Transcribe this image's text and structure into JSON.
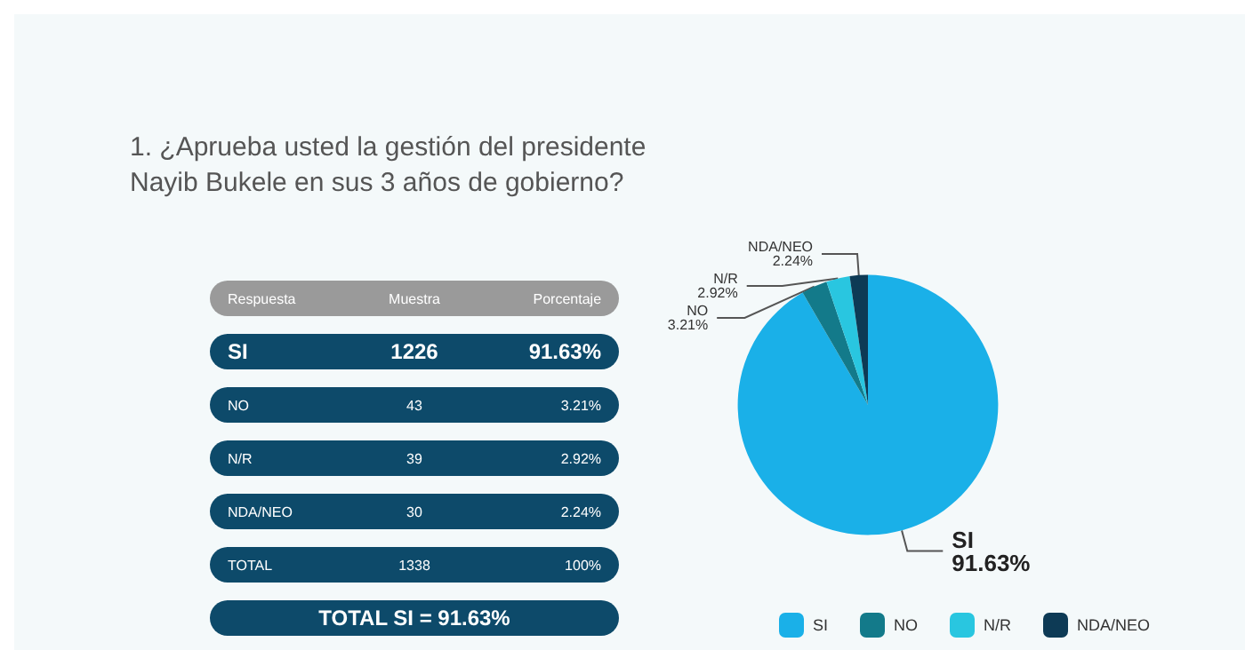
{
  "chart_data": {
    "type": "pie",
    "title": "1. ¿Aprueba usted la gestión del presidente Nayib Bukele en sus 3 años de gobierno?",
    "categories": [
      "SI",
      "NO",
      "N/R",
      "NDA/NEO"
    ],
    "values": [
      91.63,
      3.21,
      2.92,
      2.24
    ],
    "colors": [
      "#1ab0e8",
      "#137a8a",
      "#29c6e0",
      "#0d3a55"
    ],
    "value_labels": [
      "91.63%",
      "3.21%",
      "2.92%",
      "2.24%"
    ],
    "legend": "bottom",
    "annotations": [
      "Respuesta",
      "Muestra",
      "Porcentaje",
      "SI",
      "1226",
      "91.63%",
      "NO",
      "43",
      "3.21%",
      "N/R",
      "39",
      "2.92%",
      "NDA/NEO",
      "30",
      "2.24%",
      "TOTAL",
      "1338",
      "100%",
      "TOTAL SI = 91.63%"
    ]
  }
}
